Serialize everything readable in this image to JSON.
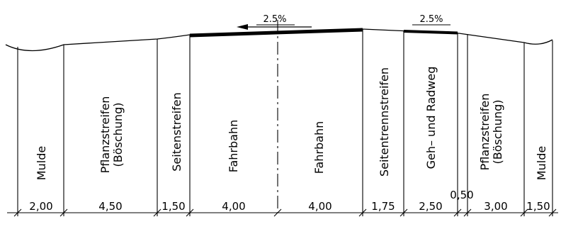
{
  "diagram": {
    "sections": [
      {
        "label": "Mulde",
        "width": "2,00"
      },
      {
        "label": "Pflanzstreifen",
        "label2": "(Böschung)",
        "width": "4,50"
      },
      {
        "label": "Seitenstreifen",
        "width": "1,50"
      },
      {
        "label": "Fahrbahn",
        "width": "4,00"
      },
      {
        "label": "Fahrbahn",
        "width": "4,00"
      },
      {
        "label": "Seitentrennstreifen",
        "width": "1,75"
      },
      {
        "label": "Geh– und Radweg",
        "width": "2,50"
      },
      {
        "label": "",
        "width": "0,50"
      },
      {
        "label": "Pflanzstreifen",
        "label2": "(Böschung)",
        "width": "3,00"
      },
      {
        "label": "Mulde",
        "width": "1,50"
      }
    ],
    "slopes": [
      {
        "text": "2.5%",
        "direction": "left"
      },
      {
        "text": "2.5%",
        "direction": "none"
      }
    ]
  }
}
